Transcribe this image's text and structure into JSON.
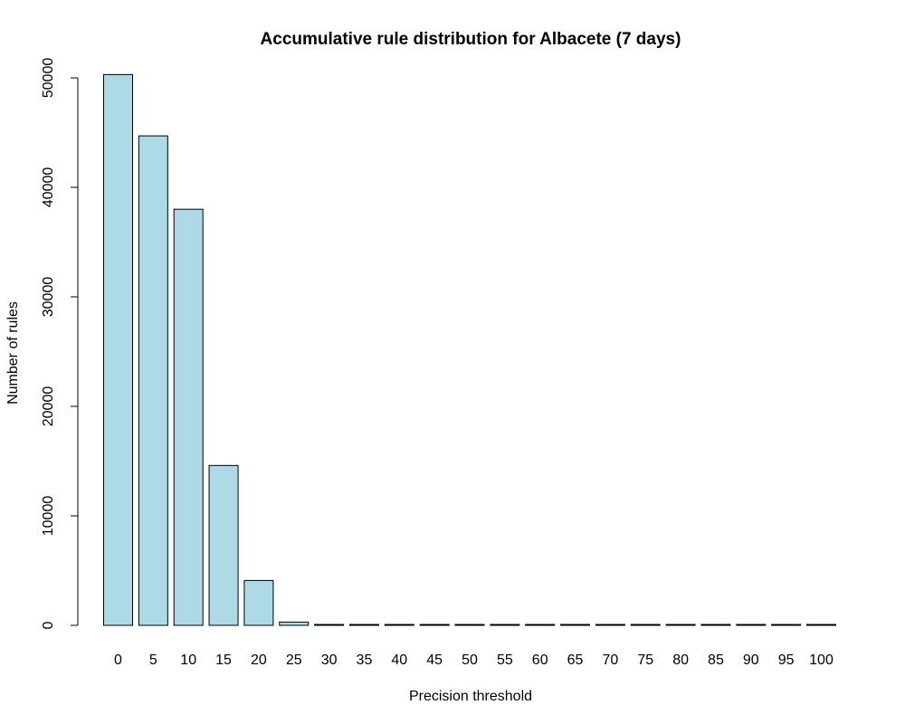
{
  "chart_data": {
    "type": "bar",
    "title": "Accumulative rule distribution for Albacete (7 days)",
    "xlabel": "Precision threshold",
    "ylabel": "Number of rules",
    "categories": [
      "0",
      "5",
      "10",
      "15",
      "20",
      "25",
      "30",
      "35",
      "40",
      "45",
      "50",
      "55",
      "60",
      "65",
      "70",
      "75",
      "80",
      "85",
      "90",
      "95",
      "100"
    ],
    "values": [
      50300,
      44700,
      38000,
      14600,
      4100,
      300,
      80,
      60,
      50,
      40,
      30,
      20,
      15,
      10,
      8,
      6,
      5,
      4,
      3,
      2,
      1
    ],
    "ylim": [
      0,
      50000
    ],
    "yticks": [
      0,
      10000,
      20000,
      30000,
      40000,
      50000
    ],
    "grid": false,
    "colors": {
      "bar_fill": "#add8e6",
      "bar_stroke": "#000000"
    }
  }
}
